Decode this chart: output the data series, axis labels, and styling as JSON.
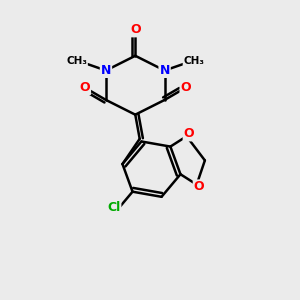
{
  "background_color": "#ebebeb",
  "atom_colors": {
    "O": "#ff0000",
    "N": "#0000ff",
    "C": "#000000",
    "Cl": "#00aa00"
  },
  "figsize": [
    3.0,
    3.0
  ],
  "dpi": 100
}
